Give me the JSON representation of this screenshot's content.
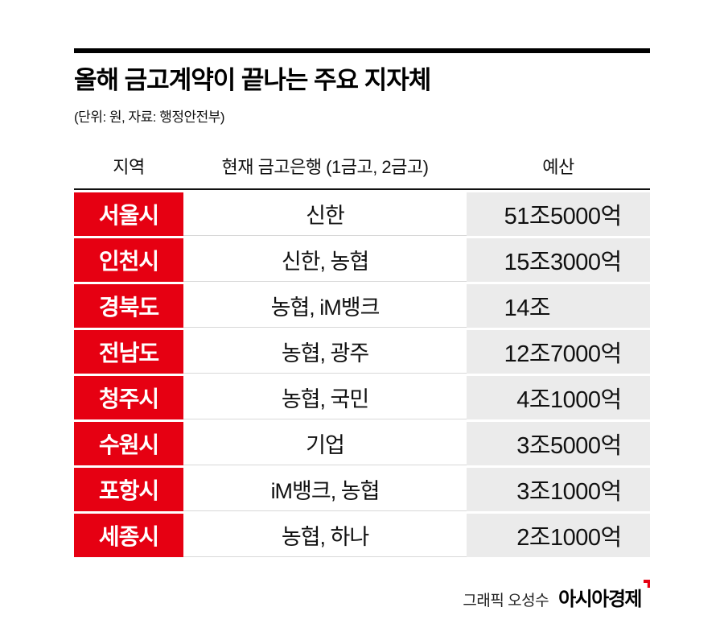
{
  "chart_data": {
    "type": "table",
    "title": "올해 금고계약이 끝나는 주요 지자체",
    "subtitle": "(단위: 원, 자료: 행정안전부)",
    "columns": [
      "지역",
      "현재 금고은행 (1금고, 2금고)",
      "예산"
    ],
    "rows": [
      {
        "region": "서울시",
        "bank": "신한",
        "budget": "51조5000억",
        "budget_jo": "51조",
        "budget_rest": "5000억"
      },
      {
        "region": "인천시",
        "bank": "신한, 농협",
        "budget": "15조3000억",
        "budget_jo": "15조",
        "budget_rest": "3000억"
      },
      {
        "region": "경북도",
        "bank": "농협, iM뱅크",
        "budget": "14조",
        "budget_jo": "14조",
        "budget_rest": ""
      },
      {
        "region": "전남도",
        "bank": "농협, 광주",
        "budget": "12조7000억",
        "budget_jo": "12조",
        "budget_rest": "7000억"
      },
      {
        "region": "청주시",
        "bank": "농협, 국민",
        "budget": "4조1000억",
        "budget_jo": "4조",
        "budget_rest": "1000억"
      },
      {
        "region": "수원시",
        "bank": "기업",
        "budget": "3조5000억",
        "budget_jo": "3조",
        "budget_rest": "5000억"
      },
      {
        "region": "포항시",
        "bank": "iM뱅크, 농협",
        "budget": "3조1000억",
        "budget_jo": "3조",
        "budget_rest": "1000억"
      },
      {
        "region": "세종시",
        "bank": "농협, 하나",
        "budget": "2조1000억",
        "budget_jo": "2조",
        "budget_rest": "1000억"
      }
    ]
  },
  "footer": {
    "credit": "그래픽 오성수",
    "brand": "아시아경제"
  },
  "colors": {
    "accent_red": "#e60012",
    "cell_gray": "#ebebeb"
  }
}
